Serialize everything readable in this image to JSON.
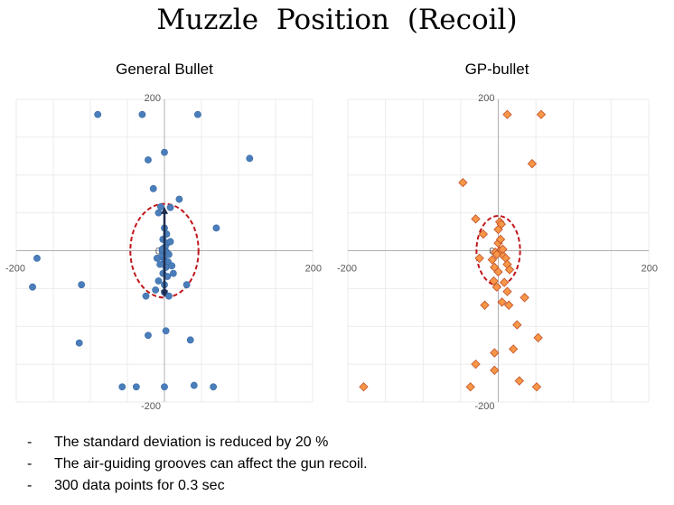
{
  "page_title": "Muzzle Position (Recoil)",
  "bullets": [
    "The standard deviation is reduced by 20 %",
    "The air-guiding grooves can affect the gun recoil.",
    "300 data points for 0.3 sec"
  ],
  "bullet_marker": "-",
  "chart_data": [
    {
      "type": "scatter",
      "title": "General Bullet",
      "xlim": [
        -200,
        200
      ],
      "ylim": [
        -200,
        200
      ],
      "xticks": [
        -200,
        200
      ],
      "yticks": [
        200,
        0,
        -200
      ],
      "grid": true,
      "marker": "circle",
      "color": "#4a7ebb",
      "ellipse": {
        "cx": 0,
        "cy": 0,
        "rx": 46,
        "ry": 62,
        "color": "#c0171c"
      },
      "series": [
        {
          "points": [
            [
              -90,
              180
            ],
            [
              -30,
              180
            ],
            [
              45,
              180
            ],
            [
              0,
              130
            ],
            [
              -22,
              120
            ],
            [
              115,
              122
            ],
            [
              -15,
              82
            ],
            [
              20,
              68
            ],
            [
              -5,
              58
            ],
            [
              8,
              57
            ],
            [
              -8,
              50
            ],
            [
              70,
              30
            ],
            [
              -172,
              -10
            ],
            [
              -178,
              -48
            ],
            [
              -112,
              -45
            ],
            [
              -25,
              -60
            ],
            [
              30,
              -45
            ],
            [
              -115,
              -122
            ],
            [
              -22,
              -112
            ],
            [
              2,
              -106
            ],
            [
              35,
              -118
            ],
            [
              -57,
              -180
            ],
            [
              -38,
              -180
            ],
            [
              0,
              -180
            ],
            [
              40,
              -178
            ],
            [
              66,
              -180
            ],
            [
              0,
              30
            ],
            [
              3,
              22
            ],
            [
              -2,
              15
            ],
            [
              4,
              10
            ],
            [
              1,
              5
            ],
            [
              -3,
              0
            ],
            [
              3,
              -2
            ],
            [
              6,
              -5
            ],
            [
              -4,
              -8
            ],
            [
              0,
              -12
            ],
            [
              5,
              -15
            ],
            [
              -6,
              -18
            ],
            [
              2,
              -22
            ],
            [
              10,
              -20
            ],
            [
              -2,
              -30
            ],
            [
              4,
              -34
            ],
            [
              -8,
              -40
            ],
            [
              0,
              -45
            ],
            [
              -3,
              2
            ],
            [
              8,
              12
            ],
            [
              -10,
              -10
            ],
            [
              12,
              -30
            ],
            [
              -12,
              -52
            ],
            [
              6,
              -60
            ],
            [
              0,
              -55
            ]
          ]
        }
      ]
    },
    {
      "type": "scatter",
      "title": "GP-bullet",
      "xlim": [
        -200,
        200
      ],
      "ylim": [
        -200,
        200
      ],
      "xticks": [
        -200,
        200
      ],
      "yticks": [
        200,
        0,
        -200
      ],
      "grid": true,
      "marker": "diamond",
      "color": "#f79646",
      "ellipse": {
        "cx": 0,
        "cy": 0,
        "rx": 29,
        "ry": 46,
        "color": "#c0171c"
      },
      "series": [
        {
          "points": [
            [
              12,
              180
            ],
            [
              57,
              180
            ],
            [
              45,
              115
            ],
            [
              -47,
              90
            ],
            [
              -30,
              42
            ],
            [
              2,
              38
            ],
            [
              4,
              35
            ],
            [
              -20,
              22
            ],
            [
              -25,
              -10
            ],
            [
              5,
              -5
            ],
            [
              10,
              -10
            ],
            [
              -8,
              -12
            ],
            [
              12,
              -18
            ],
            [
              -5,
              -22
            ],
            [
              15,
              -25
            ],
            [
              0,
              -28
            ],
            [
              -6,
              -40
            ],
            [
              8,
              -42
            ],
            [
              -2,
              -48
            ],
            [
              12,
              -54
            ],
            [
              35,
              -62
            ],
            [
              -18,
              -72
            ],
            [
              5,
              -68
            ],
            [
              14,
              -72
            ],
            [
              25,
              -98
            ],
            [
              53,
              -115
            ],
            [
              20,
              -130
            ],
            [
              -5,
              -135
            ],
            [
              -30,
              -150
            ],
            [
              -5,
              -158
            ],
            [
              28,
              -172
            ],
            [
              51,
              -180
            ],
            [
              -179,
              -180
            ],
            [
              -37,
              -180
            ],
            [
              0,
              10
            ],
            [
              2,
              0
            ],
            [
              -4,
              -2
            ],
            [
              6,
              2
            ],
            [
              0,
              28
            ],
            [
              3,
              15
            ],
            [
              -2,
              -5
            ]
          ]
        }
      ]
    }
  ]
}
